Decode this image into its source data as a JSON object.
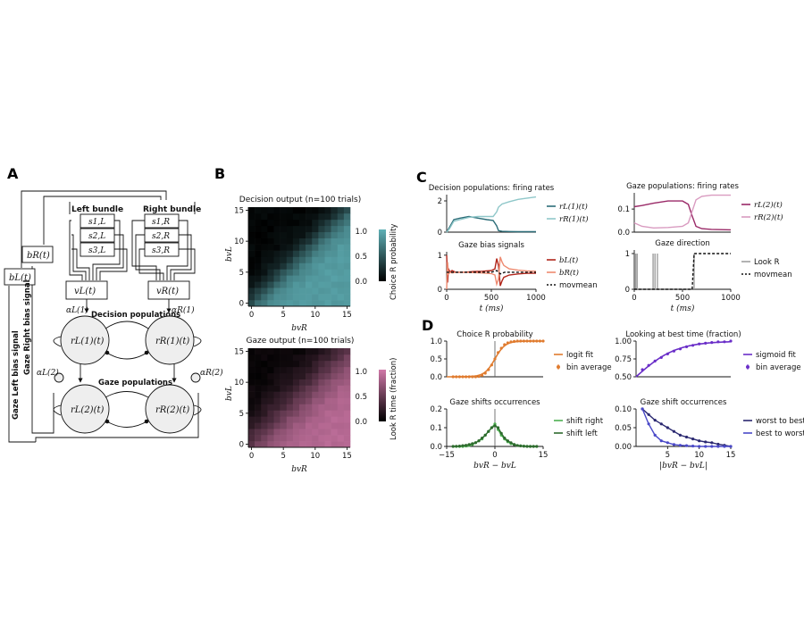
{
  "panels": {
    "A": "A",
    "B": "B",
    "C": "C",
    "D": "D"
  },
  "diagram": {
    "left_bundle": "Left bundle",
    "right_bundle": "Right bundle",
    "s_left": [
      "s1,L",
      "s2,L",
      "s3,L"
    ],
    "s_right": [
      "s1,R",
      "s2,R",
      "s3,R"
    ],
    "bR": "bR(t)",
    "bL": "bL(t)",
    "vL": "vL(t)",
    "vR": "vR(t)",
    "decision_populations": "Decision populations",
    "gaze_populations": "Gaze populations",
    "rL1": "rL(1)(t)",
    "rR1": "rR(1)(t)",
    "rL2": "rL(2)(t)",
    "rR2": "rR(2)(t)",
    "alphaL1": "αL(1)",
    "alphaR1": "αR(1)",
    "alphaL2": "αL(2)",
    "alphaR2": "αR(2)",
    "gaze_left_bias": "Gaze Left bias signal",
    "gaze_right_bias": "Gaze Right bias signal"
  },
  "colors": {
    "teal_dark": "#2c6d78",
    "teal_light": "#8fc7c9",
    "magenta_dark": "#9a2a68",
    "magenta_light": "#d99bc0",
    "red_dark": "#b1261b",
    "red_light": "#ee8a70",
    "orange": "#e07b2e",
    "green_light": "#4caf50",
    "green_dark": "#2e6b2e",
    "purple": "#6a2ec8",
    "navy": "#2a2870",
    "blue": "#4a49c8"
  },
  "chart_data": [
    {
      "id": "B_decision",
      "type": "heatmap",
      "title": "Decision output (n=100 trials)",
      "xlabel": "bvR",
      "ylabel": "bvL",
      "xticks": [
        0,
        5,
        10,
        15
      ],
      "yticks": [
        0,
        5,
        10,
        15
      ],
      "colorbar_label": "Choice R probability",
      "colorbar_ticks": [
        "0.0",
        "0.5",
        "1.0"
      ],
      "value_rule": "P(choose R) = logistic((bvR - bvL)/1.5) over a 16x16 grid of integer values 0..15"
    },
    {
      "id": "B_gaze",
      "type": "heatmap",
      "title": "Gaze output (n=100 trials)",
      "xlabel": "bvR",
      "ylabel": "bvL",
      "xticks": [
        0,
        5,
        10,
        15
      ],
      "yticks": [
        0,
        5,
        10,
        15
      ],
      "colorbar_label": "Look R time (fraction)",
      "colorbar_ticks": [
        "0.0",
        "0.5",
        "1.0"
      ],
      "value_rule": "fraction looking R = logistic((bvR - bvL)/2.5) over a 16x16 grid"
    },
    {
      "id": "C_decision_rates",
      "type": "line",
      "title": "Decision populations: firing rates",
      "x_range": [
        0,
        1000
      ],
      "ylim": [
        0,
        2.4
      ],
      "yticks": [
        "0",
        "2"
      ],
      "series": [
        {
          "name": "rL(1)(t)",
          "color": "#2c6d78",
          "x": [
            0,
            30,
            80,
            150,
            250,
            350,
            450,
            520,
            560,
            580,
            620,
            700,
            800,
            1000
          ],
          "y": [
            0,
            0.3,
            0.8,
            0.9,
            1.0,
            0.9,
            0.8,
            0.75,
            0.4,
            0.1,
            0.05,
            0.04,
            0.03,
            0.03
          ]
        },
        {
          "name": "rR(1)(t)",
          "color": "#8fc7c9",
          "x": [
            0,
            30,
            80,
            150,
            250,
            350,
            450,
            520,
            560,
            580,
            620,
            700,
            800,
            1000
          ],
          "y": [
            0,
            0.2,
            0.7,
            0.8,
            0.95,
            1.0,
            1.0,
            1.0,
            1.3,
            1.6,
            1.8,
            1.95,
            2.1,
            2.25
          ]
        }
      ]
    },
    {
      "id": "C_gaze_rates",
      "type": "line",
      "title": "Gaze populations: firing rates",
      "x_range": [
        0,
        1000
      ],
      "ylim": [
        0,
        0.17
      ],
      "yticks": [
        "0.0",
        "0.1"
      ],
      "series": [
        {
          "name": "rL(2)(t)",
          "color": "#9a2a68",
          "x": [
            0,
            80,
            200,
            350,
            500,
            560,
            600,
            640,
            700,
            800,
            1000
          ],
          "y": [
            0.11,
            0.115,
            0.125,
            0.135,
            0.135,
            0.12,
            0.07,
            0.025,
            0.015,
            0.012,
            0.01
          ]
        },
        {
          "name": "rR(2)(t)",
          "color": "#d99bc0",
          "x": [
            0,
            80,
            200,
            350,
            500,
            560,
            600,
            640,
            700,
            800,
            1000
          ],
          "y": [
            0.04,
            0.025,
            0.018,
            0.02,
            0.025,
            0.04,
            0.09,
            0.14,
            0.155,
            0.16,
            0.16
          ]
        }
      ]
    },
    {
      "id": "C_bias",
      "type": "line",
      "title": "Gaze bias signals",
      "xlabel": "t (ms)",
      "x_range": [
        0,
        1000
      ],
      "xticks": [
        0,
        500,
        1000
      ],
      "ylim": [
        0,
        1.1
      ],
      "yticks": [
        "0",
        "1"
      ],
      "series": [
        {
          "name": "bL(t)",
          "color": "#b1261b",
          "x": [
            0,
            10,
            20,
            40,
            60,
            100,
            200,
            300,
            400,
            500,
            540,
            560,
            580,
            600,
            620,
            640,
            700,
            800,
            900,
            1000
          ],
          "y": [
            1,
            0.2,
            0.6,
            0.5,
            0.55,
            0.5,
            0.5,
            0.52,
            0.53,
            0.55,
            0.6,
            0.9,
            0.7,
            0.1,
            0.25,
            0.35,
            0.42,
            0.45,
            0.47,
            0.47
          ]
        },
        {
          "name": "bR(t)",
          "color": "#ee8a70",
          "x": [
            0,
            10,
            20,
            40,
            60,
            100,
            200,
            300,
            400,
            500,
            540,
            560,
            580,
            600,
            620,
            640,
            700,
            800,
            900,
            1000
          ],
          "y": [
            0,
            0.8,
            0.45,
            0.5,
            0.48,
            0.5,
            0.5,
            0.49,
            0.48,
            0.46,
            0.42,
            0.15,
            0.3,
            0.95,
            0.8,
            0.7,
            0.6,
            0.56,
            0.54,
            0.53
          ]
        },
        {
          "name": "movmean",
          "color": "#111111",
          "dashed": true,
          "x": [
            0,
            50,
            100,
            300,
            500,
            560,
            600,
            650,
            700,
            800,
            1000
          ],
          "y": [
            0.5,
            0.5,
            0.5,
            0.5,
            0.5,
            0.55,
            0.45,
            0.5,
            0.5,
            0.5,
            0.5
          ]
        }
      ]
    },
    {
      "id": "C_gaze_direction",
      "type": "line",
      "title": "Gaze direction",
      "xlabel": "t (ms)",
      "x_range": [
        0,
        1000
      ],
      "xticks": [
        0,
        500,
        1000
      ],
      "ylim": [
        0,
        1.1
      ],
      "yticks": [
        "0",
        "1"
      ],
      "series": [
        {
          "name": "Look R",
          "color": "#9e9e9e",
          "spikes": [
            15,
            30,
            195,
            215,
            240,
            620
          ]
        },
        {
          "name": "movmean",
          "color": "#111111",
          "dashed": true,
          "x": [
            0,
            600,
            620,
            1000
          ],
          "y": [
            0,
            0,
            1,
            1
          ]
        }
      ]
    },
    {
      "id": "D_choice",
      "type": "line",
      "title": "Choice R probability",
      "x_range": [
        -15,
        15
      ],
      "ylim": [
        0,
        1
      ],
      "yticks": [
        "0.0",
        "0.5",
        "1.0"
      ],
      "series": [
        {
          "name": "logit fit",
          "color": "#e07b2e",
          "rule": "logistic(x/1.6)"
        },
        {
          "name": "bin average",
          "color": "#e07b2e",
          "markers": true,
          "x": [
            -13,
            -12,
            -11,
            -10,
            -9,
            -8,
            -7,
            -6,
            -5,
            -4,
            -3,
            -2,
            -1,
            0,
            1,
            2,
            3,
            4,
            5,
            6,
            7,
            8,
            9,
            10,
            11,
            12,
            13,
            14,
            15
          ],
          "y": [
            0,
            0,
            0,
            0,
            0,
            0,
            0,
            0,
            0.01,
            0.04,
            0.1,
            0.2,
            0.33,
            0.5,
            0.68,
            0.8,
            0.9,
            0.95,
            0.98,
            0.99,
            1,
            1,
            1,
            1,
            1,
            1,
            1,
            1,
            1
          ]
        }
      ]
    },
    {
      "id": "D_shifts",
      "type": "line",
      "title": "Gaze shifts occurrences",
      "xlabel": "bvR − bvL",
      "x_range": [
        -15,
        15
      ],
      "xticks": [
        -15,
        0,
        15
      ],
      "ylim": [
        0,
        0.2
      ],
      "yticks": [
        "0.0",
        "0.1",
        "0.2"
      ],
      "series": [
        {
          "name": "shift right",
          "color": "#4caf50",
          "x": [
            -13,
            -12,
            -11,
            -10,
            -9,
            -8,
            -7,
            -6,
            -5,
            -4,
            -3,
            -2,
            -1,
            0,
            1,
            2,
            3,
            4,
            5,
            6,
            7,
            8,
            9,
            10,
            11,
            12,
            13
          ],
          "y": [
            0,
            0,
            0,
            0,
            0.002,
            0.005,
            0.01,
            0.02,
            0.03,
            0.04,
            0.06,
            0.08,
            0.1,
            0.12,
            0.09,
            0.06,
            0.04,
            0.025,
            0.015,
            0.01,
            0.005,
            0.003,
            0.002,
            0.001,
            0,
            0,
            0
          ]
        },
        {
          "name": "shift left",
          "color": "#2e6b2e",
          "x": [
            -13,
            -12,
            -11,
            -10,
            -9,
            -8,
            -7,
            -6,
            -5,
            -4,
            -3,
            -2,
            -1,
            0,
            1,
            2,
            3,
            4,
            5,
            6,
            7,
            8,
            9,
            10,
            11,
            12,
            13
          ],
          "y": [
            0,
            0.001,
            0.002,
            0.004,
            0.006,
            0.01,
            0.015,
            0.02,
            0.03,
            0.045,
            0.06,
            0.08,
            0.1,
            0.11,
            0.1,
            0.07,
            0.045,
            0.03,
            0.02,
            0.01,
            0.005,
            0.003,
            0.001,
            0,
            0,
            0,
            0
          ]
        }
      ]
    },
    {
      "id": "D_best_time",
      "type": "line",
      "title": "Looking at best time (fraction)",
      "x_range": [
        0,
        15
      ],
      "ylim": [
        0.5,
        1.0
      ],
      "yticks": [
        "0.50",
        "0.75",
        "1.00"
      ],
      "series": [
        {
          "name": "sigmoid fit",
          "color": "#6a2ec8",
          "rule": "1/(1+exp(-x/3.2))"
        },
        {
          "name": "bin average",
          "color": "#6a2ec8",
          "markers": true,
          "x": [
            1,
            2,
            3,
            4,
            5,
            6,
            7,
            8,
            9,
            10,
            11,
            12,
            13,
            14,
            15
          ],
          "y": [
            0.6,
            0.66,
            0.72,
            0.77,
            0.82,
            0.86,
            0.89,
            0.92,
            0.94,
            0.96,
            0.97,
            0.98,
            0.99,
            0.99,
            1.0
          ]
        }
      ]
    },
    {
      "id": "D_occurrences",
      "type": "line",
      "title": "Gaze shift occurrences",
      "xlabel": "|bvR − bvL|",
      "x_range": [
        0,
        15
      ],
      "xticks": [
        5,
        10,
        15
      ],
      "ylim": [
        0,
        0.1
      ],
      "yticks": [
        "0.00",
        "0.05",
        "0.10"
      ],
      "series": [
        {
          "name": "worst to best",
          "color": "#2a2870",
          "x": [
            1,
            2,
            3,
            4,
            5,
            6,
            7,
            8,
            9,
            10,
            11,
            12,
            13,
            14,
            15
          ],
          "y": [
            0.1,
            0.085,
            0.07,
            0.06,
            0.05,
            0.04,
            0.03,
            0.025,
            0.02,
            0.015,
            0.012,
            0.01,
            0.006,
            0.003,
            0
          ]
        },
        {
          "name": "best to worst",
          "color": "#4a49c8",
          "x": [
            1,
            2,
            3,
            4,
            5,
            6,
            7,
            8,
            9,
            10,
            11,
            12,
            13,
            14,
            15
          ],
          "y": [
            0.1,
            0.06,
            0.03,
            0.015,
            0.01,
            0.005,
            0.003,
            0.002,
            0.001,
            0,
            0,
            0,
            0,
            0,
            0
          ]
        }
      ]
    }
  ]
}
